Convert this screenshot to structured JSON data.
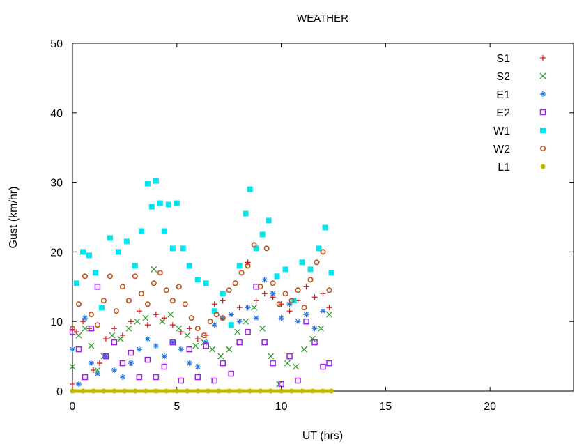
{
  "chart_data": {
    "type": "scatter",
    "title": "WEATHER",
    "xlabel": "UT (hrs)",
    "ylabel": "Gust (km/hr)",
    "xlim": [
      0,
      24
    ],
    "ylim": [
      0,
      50
    ],
    "xticks": [
      0,
      5,
      10,
      15,
      20
    ],
    "yticks": [
      0,
      10,
      20,
      30,
      40,
      50
    ],
    "grid": false,
    "legend_position": "top-right",
    "series": [
      {
        "name": "S1",
        "marker": "plus",
        "color": "#e41a1c",
        "x": [
          0.0,
          0.2,
          0.5,
          0.8,
          1.0,
          1.3,
          1.6,
          2.0,
          2.4,
          2.8,
          3.2,
          3.6,
          4.0,
          4.4,
          4.8,
          5.2,
          5.6,
          6.0,
          6.4,
          6.8,
          7.2,
          7.6,
          8.0,
          8.4,
          8.8,
          9.2,
          9.6,
          10.0,
          10.4,
          10.8,
          11.2,
          11.6,
          12.0,
          12.3
        ],
        "y": [
          1.0,
          8.5,
          10.0,
          9.0,
          3.0,
          4.0,
          7.5,
          9.0,
          8.0,
          10.0,
          11.5,
          9.5,
          11.0,
          10.5,
          9.5,
          8.5,
          9.0,
          7.5,
          8.0,
          12.5,
          13.0,
          11.0,
          12.0,
          18.5,
          13.0,
          14.0,
          13.5,
          12.5,
          11.5,
          13.0,
          15.0,
          13.5,
          14.0,
          12.0
        ]
      },
      {
        "name": "S2",
        "marker": "cross",
        "color": "#2ca02c",
        "x": [
          0.0,
          0.3,
          0.6,
          0.9,
          1.2,
          1.5,
          1.9,
          2.3,
          2.7,
          3.1,
          3.5,
          3.9,
          4.3,
          4.7,
          5.1,
          5.5,
          5.9,
          6.3,
          6.7,
          7.1,
          7.5,
          7.9,
          8.3,
          8.7,
          9.1,
          9.5,
          9.9,
          10.3,
          10.7,
          11.1,
          11.5,
          11.9,
          12.3
        ],
        "y": [
          3.5,
          8.0,
          9.0,
          6.5,
          3.0,
          5.0,
          8.0,
          7.5,
          9.0,
          10.0,
          10.5,
          17.5,
          10.0,
          11.0,
          9.0,
          8.0,
          6.5,
          7.0,
          6.0,
          5.0,
          6.0,
          8.5,
          10.0,
          12.0,
          9.0,
          5.0,
          1.0,
          4.0,
          3.5,
          6.0,
          7.5,
          9.0,
          11.0
        ]
      },
      {
        "name": "E1",
        "marker": "star",
        "color": "#1f77e4",
        "x": [
          0.0,
          0.3,
          0.6,
          0.9,
          1.2,
          1.6,
          2.0,
          2.4,
          2.8,
          3.2,
          3.6,
          4.0,
          4.4,
          4.8,
          5.2,
          5.6,
          6.0,
          6.4,
          6.8,
          7.2,
          7.6,
          8.0,
          8.4,
          8.8,
          9.2,
          9.6,
          10.0,
          10.4,
          10.8,
          11.2,
          11.6,
          12.0
        ],
        "y": [
          6.0,
          1.0,
          10.5,
          4.0,
          2.5,
          5.0,
          3.0,
          2.0,
          4.0,
          6.0,
          7.5,
          6.5,
          5.0,
          7.0,
          6.0,
          4.0,
          3.5,
          7.0,
          9.5,
          10.5,
          11.0,
          10.0,
          12.0,
          10.5,
          16.0,
          14.0,
          10.5,
          12.5,
          10.0,
          11.0,
          9.0,
          11.5
        ]
      },
      {
        "name": "E2",
        "marker": "square-open",
        "color": "#a020f0",
        "x": [
          0.0,
          0.3,
          0.6,
          0.9,
          1.2,
          1.6,
          2.0,
          2.4,
          2.8,
          3.2,
          3.6,
          4.0,
          4.4,
          4.8,
          5.2,
          5.6,
          6.0,
          6.4,
          6.8,
          7.2,
          7.6,
          8.0,
          8.4,
          8.8,
          9.2,
          9.6,
          10.0,
          10.4,
          10.8,
          11.2,
          11.6,
          12.0,
          12.3
        ],
        "y": [
          8.5,
          6.0,
          2.0,
          9.0,
          15.0,
          5.0,
          7.0,
          4.0,
          5.5,
          2.0,
          4.5,
          2.0,
          3.5,
          7.0,
          1.5,
          6.0,
          2.0,
          6.5,
          1.5,
          4.0,
          2.5,
          7.0,
          8.5,
          15.0,
          7.0,
          4.0,
          1.0,
          5.0,
          1.5,
          10.0,
          7.0,
          3.5,
          4.0
        ]
      },
      {
        "name": "W1",
        "marker": "square-filled",
        "color": "#00e5ee",
        "x": [
          0.2,
          0.5,
          0.8,
          1.1,
          1.4,
          1.8,
          2.2,
          2.6,
          3.0,
          3.3,
          3.6,
          3.8,
          4.0,
          4.2,
          4.4,
          4.6,
          4.8,
          5.0,
          5.3,
          5.6,
          6.0,
          6.4,
          6.8,
          7.2,
          7.6,
          8.0,
          8.3,
          8.5,
          8.8,
          9.1,
          9.4,
          9.8,
          10.2,
          10.6,
          11.0,
          11.4,
          11.8,
          12.1,
          12.4
        ],
        "y": [
          15.5,
          20.0,
          19.5,
          17.0,
          12.0,
          22.0,
          20.0,
          21.5,
          18.0,
          23.0,
          29.8,
          26.5,
          30.2,
          27.0,
          23.0,
          26.8,
          20.5,
          27.0,
          20.5,
          18.0,
          16.0,
          15.5,
          11.5,
          14.0,
          9.5,
          18.0,
          25.5,
          29.0,
          20.5,
          22.5,
          24.5,
          16.5,
          17.5,
          13.0,
          18.5,
          17.5,
          20.5,
          23.5,
          17.0
        ]
      },
      {
        "name": "W2",
        "marker": "circle-open",
        "color": "#c0501c",
        "x": [
          0.0,
          0.3,
          0.6,
          0.9,
          1.2,
          1.5,
          1.8,
          2.1,
          2.4,
          2.7,
          3.0,
          3.3,
          3.6,
          3.9,
          4.2,
          4.5,
          4.8,
          5.1,
          5.4,
          5.7,
          6.0,
          6.3,
          6.6,
          6.9,
          7.2,
          7.5,
          7.8,
          8.1,
          8.4,
          8.7,
          9.0,
          9.3,
          9.6,
          9.9,
          10.2,
          10.5,
          10.8,
          11.1,
          11.4,
          11.7,
          12.0,
          12.3
        ],
        "y": [
          9.0,
          12.5,
          16.5,
          11.0,
          9.5,
          13.0,
          16.5,
          11.5,
          15.0,
          13.0,
          16.5,
          14.0,
          12.5,
          15.5,
          17.0,
          14.5,
          13.0,
          15.0,
          12.5,
          10.5,
          9.0,
          8.0,
          10.0,
          11.0,
          10.5,
          14.5,
          15.5,
          17.0,
          18.0,
          21.0,
          15.0,
          20.5,
          15.5,
          12.5,
          14.0,
          13.0,
          14.5,
          12.0,
          16.0,
          18.5,
          20.0,
          14.5
        ]
      },
      {
        "name": "L1",
        "marker": "circle-filled",
        "color": "#c0b800",
        "x": [
          0.0,
          0.5,
          1.0,
          1.5,
          2.0,
          2.5,
          3.0,
          3.5,
          4.0,
          4.5,
          5.0,
          5.5,
          6.0,
          6.5,
          7.0,
          7.5,
          8.0,
          8.5,
          9.0,
          9.5,
          10.0,
          10.5,
          11.0,
          11.5,
          12.0,
          12.4
        ],
        "y": [
          0,
          0,
          0,
          0,
          0,
          0,
          0,
          0,
          0,
          0,
          0,
          0,
          0,
          0,
          0,
          0,
          0,
          0,
          0,
          0,
          0,
          0,
          0,
          0,
          0,
          0
        ]
      }
    ]
  }
}
